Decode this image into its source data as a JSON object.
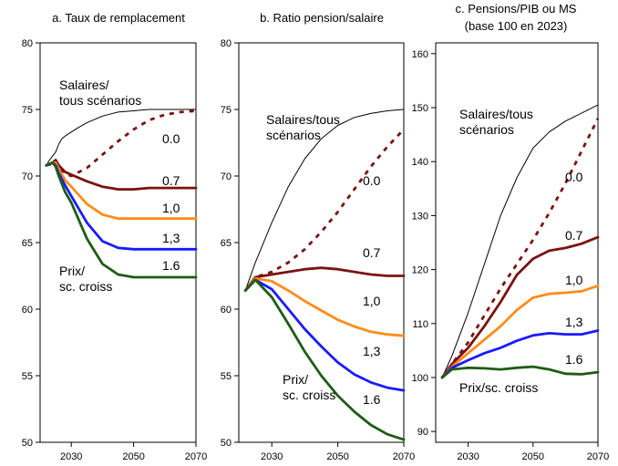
{
  "chart_data": [
    {
      "type": "line",
      "title": "a. Taux de remplacement",
      "xlim": [
        2020,
        2070
      ],
      "ylim": [
        50,
        80
      ],
      "xticks": [
        2030,
        2050,
        2070
      ],
      "yticks": [
        50,
        55,
        60,
        65,
        70,
        75,
        80
      ],
      "annotations": [
        {
          "lines": [
            "Salaires/",
            "tous scénarios"
          ]
        },
        {
          "lines": [
            "0.0"
          ]
        },
        {
          "lines": [
            "0.7"
          ]
        },
        {
          "lines": [
            "1,0"
          ]
        },
        {
          "lines": [
            "1,3"
          ]
        },
        {
          "lines": [
            "1.6"
          ]
        },
        {
          "lines": [
            "Prix/",
            "sc. croiss"
          ]
        }
      ],
      "series": [
        {
          "color": "#000000",
          "dash": "solid",
          "width": 1,
          "x": [
            2022,
            2023,
            2024,
            2025,
            2026,
            2027,
            2028,
            2030,
            2032,
            2035,
            2040,
            2045,
            2050,
            2055,
            2060,
            2065,
            2070
          ],
          "y": [
            70.8,
            71.2,
            71.5,
            71.8,
            72.4,
            72.8,
            73.0,
            73.3,
            73.6,
            74.0,
            74.5,
            74.8,
            74.9,
            75.0,
            75.0,
            75.0,
            75.0
          ]
        },
        {
          "color": "#7b1212",
          "dash": "dashed",
          "width": 2.8,
          "x": [
            2022,
            2024,
            2025,
            2026,
            2028,
            2030,
            2035,
            2040,
            2045,
            2050,
            2055,
            2060,
            2065,
            2070
          ],
          "y": [
            70.8,
            70.9,
            71.1,
            70.6,
            70.2,
            70.0,
            70.6,
            71.6,
            72.6,
            73.5,
            74.2,
            74.6,
            74.8,
            74.9
          ]
        },
        {
          "color": "#7b1212",
          "dash": "solid",
          "width": 2.8,
          "x": [
            2022,
            2024,
            2025,
            2026,
            2028,
            2030,
            2035,
            2040,
            2045,
            2050,
            2055,
            2060,
            2065,
            2070
          ],
          "y": [
            70.8,
            71.0,
            71.2,
            70.8,
            70.3,
            70.1,
            69.6,
            69.2,
            69.0,
            69.0,
            69.1,
            69.1,
            69.1,
            69.1
          ]
        },
        {
          "color": "#ff8c1a",
          "dash": "solid",
          "width": 2.8,
          "x": [
            2022,
            2024,
            2025,
            2026,
            2028,
            2030,
            2035,
            2040,
            2045,
            2050,
            2055,
            2060,
            2065,
            2070
          ],
          "y": [
            70.8,
            71.0,
            71.0,
            70.5,
            69.7,
            69.2,
            67.9,
            67.1,
            66.8,
            66.8,
            66.8,
            66.8,
            66.8,
            66.8
          ]
        },
        {
          "color": "#1a1aff",
          "dash": "solid",
          "width": 2.8,
          "x": [
            2022,
            2024,
            2025,
            2026,
            2028,
            2030,
            2035,
            2040,
            2045,
            2050,
            2055,
            2060,
            2065,
            2070
          ],
          "y": [
            70.8,
            71.0,
            70.8,
            70.2,
            69.3,
            68.5,
            66.5,
            65.1,
            64.6,
            64.5,
            64.5,
            64.5,
            64.5,
            64.5
          ]
        },
        {
          "color": "#1e5c14",
          "dash": "solid",
          "width": 2.8,
          "x": [
            2022,
            2024,
            2025,
            2026,
            2028,
            2030,
            2035,
            2040,
            2045,
            2050,
            2055,
            2060,
            2065,
            2070
          ],
          "y": [
            70.8,
            71.0,
            70.7,
            70.0,
            68.8,
            68.0,
            65.3,
            63.4,
            62.6,
            62.4,
            62.4,
            62.4,
            62.4,
            62.4
          ]
        }
      ]
    },
    {
      "type": "line",
      "title": "b. Ratio pension/salaire",
      "xlim": [
        2020,
        2070
      ],
      "ylim": [
        50,
        80
      ],
      "xticks": [
        2030,
        2050,
        2070
      ],
      "yticks": [
        50,
        55,
        60,
        65,
        70,
        75,
        80
      ],
      "annotations": [
        {
          "lines": [
            "Salaires/tous",
            "scénarios"
          ]
        },
        {
          "lines": [
            "0.0"
          ]
        },
        {
          "lines": [
            "0.7"
          ]
        },
        {
          "lines": [
            "1,0"
          ]
        },
        {
          "lines": [
            "1,3"
          ]
        },
        {
          "lines": [
            "Prix/",
            "sc. croiss"
          ]
        },
        {
          "lines": [
            "1.6"
          ]
        }
      ],
      "series": [
        {
          "color": "#000000",
          "dash": "solid",
          "width": 1,
          "x": [
            2022,
            2025,
            2030,
            2035,
            2040,
            2045,
            2050,
            2055,
            2060,
            2065,
            2070
          ],
          "y": [
            61.4,
            63.5,
            66.5,
            69.2,
            71.3,
            72.8,
            73.8,
            74.4,
            74.7,
            74.9,
            75.0
          ]
        },
        {
          "color": "#7b1212",
          "dash": "dashed",
          "width": 2.8,
          "x": [
            2022,
            2025,
            2030,
            2035,
            2040,
            2045,
            2050,
            2055,
            2060,
            2065,
            2070
          ],
          "y": [
            61.4,
            62.4,
            62.8,
            63.5,
            64.5,
            65.8,
            67.3,
            69.0,
            70.7,
            72.2,
            73.5
          ]
        },
        {
          "color": "#7b1212",
          "dash": "solid",
          "width": 2.8,
          "x": [
            2022,
            2025,
            2030,
            2035,
            2040,
            2045,
            2050,
            2055,
            2060,
            2065,
            2070
          ],
          "y": [
            61.4,
            62.4,
            62.6,
            62.8,
            63.0,
            63.1,
            63.0,
            62.8,
            62.6,
            62.5,
            62.5
          ]
        },
        {
          "color": "#ff8c1a",
          "dash": "solid",
          "width": 2.8,
          "x": [
            2022,
            2025,
            2030,
            2035,
            2040,
            2045,
            2050,
            2055,
            2060,
            2065,
            2070
          ],
          "y": [
            61.4,
            62.3,
            62.1,
            61.4,
            60.6,
            59.9,
            59.2,
            58.7,
            58.3,
            58.1,
            58.0
          ]
        },
        {
          "color": "#1a1aff",
          "dash": "solid",
          "width": 2.8,
          "x": [
            2022,
            2025,
            2030,
            2035,
            2040,
            2045,
            2050,
            2055,
            2060,
            2065,
            2070
          ],
          "y": [
            61.4,
            62.2,
            61.5,
            60.0,
            58.5,
            57.2,
            56.0,
            55.1,
            54.5,
            54.1,
            53.9
          ]
        },
        {
          "color": "#1e5c14",
          "dash": "solid",
          "width": 2.8,
          "x": [
            2022,
            2025,
            2030,
            2035,
            2040,
            2045,
            2050,
            2055,
            2060,
            2065,
            2070
          ],
          "y": [
            61.4,
            62.2,
            60.9,
            58.9,
            56.8,
            55.0,
            53.5,
            52.3,
            51.3,
            50.6,
            50.2
          ]
        }
      ]
    },
    {
      "type": "line",
      "title": "c. Pensions/PIB ou MS",
      "subtitle": "(base 100 en 2023)",
      "xlim": [
        2020,
        2070
      ],
      "ylim": [
        88,
        162
      ],
      "xticks": [
        2030,
        2050,
        2070
      ],
      "yticks": [
        90,
        100,
        110,
        120,
        130,
        140,
        150,
        160
      ],
      "annotations": [
        {
          "lines": [
            "Salaires/tous",
            "scénarios"
          ]
        },
        {
          "lines": [
            "0.0"
          ]
        },
        {
          "lines": [
            "0.7"
          ]
        },
        {
          "lines": [
            "1,0"
          ]
        },
        {
          "lines": [
            "1,3"
          ]
        },
        {
          "lines": [
            "1.6"
          ]
        },
        {
          "lines": [
            "Prix/sc. croiss"
          ]
        }
      ],
      "series": [
        {
          "color": "#000000",
          "dash": "solid",
          "width": 1,
          "x": [
            2022,
            2025,
            2030,
            2035,
            2040,
            2045,
            2050,
            2055,
            2060,
            2065,
            2070
          ],
          "y": [
            100.0,
            104.0,
            112.0,
            121.0,
            130.0,
            137.0,
            142.5,
            145.5,
            147.5,
            149.0,
            150.5
          ]
        },
        {
          "color": "#7b1212",
          "dash": "dashed",
          "width": 2.8,
          "x": [
            2022,
            2025,
            2030,
            2035,
            2040,
            2045,
            2050,
            2055,
            2060,
            2065,
            2070
          ],
          "y": [
            100.0,
            102.5,
            106.5,
            111.5,
            116.5,
            121.0,
            125.5,
            130.5,
            136.0,
            142.0,
            148.0
          ]
        },
        {
          "color": "#7b1212",
          "dash": "solid",
          "width": 2.8,
          "x": [
            2022,
            2025,
            2030,
            2035,
            2040,
            2045,
            2050,
            2055,
            2060,
            2065,
            2070
          ],
          "y": [
            100.0,
            102.5,
            105.5,
            109.5,
            114.0,
            119.0,
            122.0,
            123.5,
            124.0,
            124.8,
            126.0
          ]
        },
        {
          "color": "#ff8c1a",
          "dash": "solid",
          "width": 2.8,
          "x": [
            2022,
            2025,
            2030,
            2035,
            2040,
            2045,
            2050,
            2055,
            2060,
            2065,
            2070
          ],
          "y": [
            100.0,
            102.0,
            104.5,
            107.0,
            109.5,
            112.5,
            114.8,
            115.5,
            115.7,
            116.0,
            117.0
          ]
        },
        {
          "color": "#1a1aff",
          "dash": "solid",
          "width": 2.8,
          "x": [
            2022,
            2025,
            2030,
            2035,
            2040,
            2045,
            2050,
            2055,
            2060,
            2065,
            2070
          ],
          "y": [
            100.0,
            101.8,
            103.2,
            104.5,
            105.5,
            106.8,
            107.8,
            108.2,
            108.0,
            108.0,
            108.7
          ]
        },
        {
          "color": "#1e5c14",
          "dash": "solid",
          "width": 2.8,
          "x": [
            2022,
            2025,
            2030,
            2035,
            2040,
            2045,
            2050,
            2055,
            2060,
            2065,
            2070
          ],
          "y": [
            100.0,
            101.5,
            101.8,
            101.7,
            101.5,
            101.8,
            102.0,
            101.5,
            100.7,
            100.6,
            101.0
          ]
        }
      ]
    }
  ]
}
